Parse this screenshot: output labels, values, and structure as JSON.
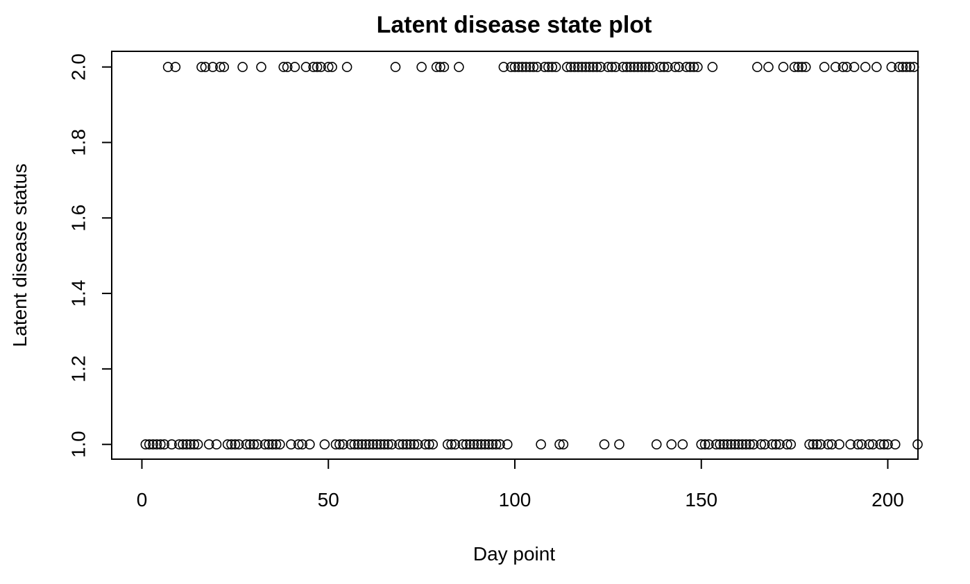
{
  "chart_data": {
    "type": "scatter",
    "title": "Latent disease state plot",
    "xlabel": "Day point",
    "ylabel": "Latent disease status",
    "xlim": [
      -8,
      208
    ],
    "ylim": [
      1.0,
      2.0
    ],
    "xticks": [
      0,
      50,
      100,
      150,
      200
    ],
    "yticks": [
      1.0,
      1.2,
      1.4,
      1.6,
      1.8,
      2.0
    ],
    "xtick_labels": [
      "0",
      "50",
      "100",
      "150",
      "200"
    ],
    "ytick_labels": [
      "1.0",
      "1.2",
      "1.4",
      "1.6",
      "1.8",
      "2.0"
    ],
    "grid": false,
    "legend": "none",
    "colors": {
      "points": "#000000",
      "axes": "#000000",
      "background": "#ffffff"
    },
    "series": [
      {
        "x": [
          1,
          2,
          3,
          4,
          5,
          6,
          7,
          8,
          9,
          10,
          11,
          12,
          13,
          14,
          15,
          16,
          17,
          18,
          19,
          20,
          21,
          22,
          23,
          24,
          25,
          26,
          27,
          28,
          29,
          30,
          31,
          32,
          33,
          34,
          35,
          36,
          37,
          38,
          39,
          40,
          41,
          42,
          43,
          44,
          45,
          46,
          47,
          48,
          49,
          50,
          51,
          52,
          53,
          54,
          55,
          56,
          57,
          58,
          59,
          60,
          61,
          62,
          63,
          64,
          65,
          66,
          67,
          68,
          69,
          70,
          71,
          72,
          73,
          74,
          75,
          76,
          77,
          78,
          79,
          80,
          81,
          82,
          83,
          84,
          85,
          86,
          87,
          88,
          89,
          90,
          91,
          92,
          93,
          94,
          95,
          96,
          97,
          98,
          99,
          100,
          101,
          102,
          103,
          104,
          105,
          106,
          107,
          108,
          109,
          110,
          111,
          112,
          113,
          114,
          115,
          116,
          117,
          118,
          119,
          120,
          121,
          122,
          123,
          124,
          125,
          126,
          127,
          128,
          129,
          130,
          131,
          132,
          133,
          134,
          135,
          136,
          137,
          138,
          139,
          140,
          141,
          142,
          143,
          144,
          145,
          146,
          147,
          148,
          149,
          150,
          151,
          152,
          153,
          154,
          155,
          156,
          157,
          158,
          159,
          160,
          161,
          162,
          163,
          164,
          165,
          166,
          167,
          168,
          169,
          170,
          171,
          172,
          173,
          174,
          175,
          176,
          177,
          178,
          179,
          180,
          181,
          182,
          183,
          184,
          185,
          186,
          187,
          188,
          189,
          190,
          191,
          192,
          193,
          194,
          195,
          196,
          197,
          198,
          199,
          200,
          201,
          202,
          203,
          204,
          205,
          206,
          207,
          208
        ],
        "y": [
          1,
          1,
          1,
          1,
          1,
          1,
          2,
          1,
          2,
          1,
          1,
          1,
          1,
          1,
          1,
          2,
          2,
          1,
          2,
          1,
          2,
          2,
          1,
          1,
          1,
          1,
          2,
          1,
          1,
          1,
          1,
          2,
          1,
          1,
          1,
          1,
          1,
          2,
          2,
          1,
          2,
          1,
          1,
          2,
          1,
          2,
          2,
          2,
          1,
          2,
          2,
          1,
          1,
          1,
          2,
          1,
          1,
          1,
          1,
          1,
          1,
          1,
          1,
          1,
          1,
          1,
          1,
          2,
          1,
          1,
          1,
          1,
          1,
          1,
          2,
          1,
          1,
          1,
          2,
          2,
          2,
          1,
          1,
          1,
          2,
          1,
          1,
          1,
          1,
          1,
          1,
          1,
          1,
          1,
          1,
          1,
          2,
          1,
          2,
          2,
          2,
          2,
          2,
          2,
          2,
          2,
          1,
          2,
          2,
          2,
          2,
          1,
          1,
          2,
          2,
          2,
          2,
          2,
          2,
          2,
          2,
          2,
          2,
          1,
          2,
          2,
          2,
          1,
          2,
          2,
          2,
          2,
          2,
          2,
          2,
          2,
          2,
          1,
          2,
          2,
          2,
          1,
          2,
          2,
          1,
          2,
          2,
          2,
          2,
          1,
          1,
          1,
          2,
          1,
          1,
          1,
          1,
          1,
          1,
          1,
          1,
          1,
          1,
          1,
          2,
          1,
          1,
          2,
          1,
          1,
          1,
          2,
          1,
          1,
          2,
          2,
          2,
          2,
          1,
          1,
          1,
          1,
          2,
          1,
          1,
          2,
          1,
          2,
          2,
          1,
          2,
          1,
          1,
          2,
          1,
          1,
          2,
          1,
          1,
          1,
          2,
          1,
          2,
          2,
          2,
          2,
          2,
          1
        ]
      }
    ]
  }
}
